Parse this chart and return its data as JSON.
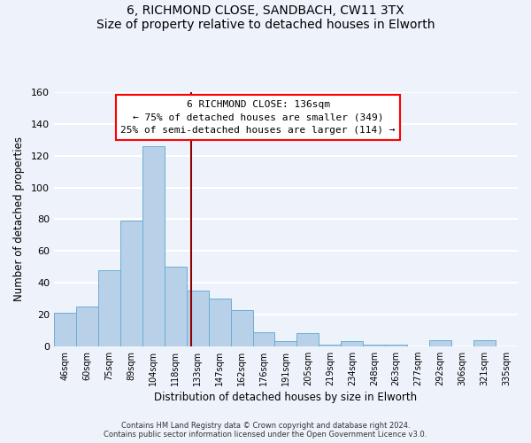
{
  "title": "6, RICHMOND CLOSE, SANDBACH, CW11 3TX",
  "subtitle": "Size of property relative to detached houses in Elworth",
  "xlabel": "Distribution of detached houses by size in Elworth",
  "ylabel": "Number of detached properties",
  "bar_color": "#b8d0e8",
  "bar_edge_color": "#6aaed6",
  "background_color": "#eef2fa",
  "grid_color": "white",
  "bin_labels": [
    "46sqm",
    "60sqm",
    "75sqm",
    "89sqm",
    "104sqm",
    "118sqm",
    "133sqm",
    "147sqm",
    "162sqm",
    "176sqm",
    "191sqm",
    "205sqm",
    "219sqm",
    "234sqm",
    "248sqm",
    "263sqm",
    "277sqm",
    "292sqm",
    "306sqm",
    "321sqm",
    "335sqm"
  ],
  "bar_heights": [
    21,
    25,
    48,
    79,
    126,
    50,
    35,
    30,
    23,
    9,
    3,
    8,
    1,
    3,
    1,
    1,
    0,
    4,
    0,
    4,
    0
  ],
  "ylim": [
    0,
    160
  ],
  "yticks": [
    0,
    20,
    40,
    60,
    80,
    100,
    120,
    140,
    160
  ],
  "property_line_x": 136,
  "bin_edges_values": [
    46,
    60,
    75,
    89,
    104,
    118,
    133,
    147,
    162,
    176,
    191,
    205,
    219,
    234,
    248,
    263,
    277,
    292,
    306,
    321,
    335,
    349
  ],
  "annotation_title": "6 RICHMOND CLOSE: 136sqm",
  "annotation_line1": "← 75% of detached houses are smaller (349)",
  "annotation_line2": "25% of semi-detached houses are larger (114) →",
  "annotation_box_color": "white",
  "annotation_box_edge_color": "red",
  "vline_color": "#8b0000",
  "footnote1": "Contains HM Land Registry data © Crown copyright and database right 2024.",
  "footnote2": "Contains public sector information licensed under the Open Government Licence v3.0."
}
